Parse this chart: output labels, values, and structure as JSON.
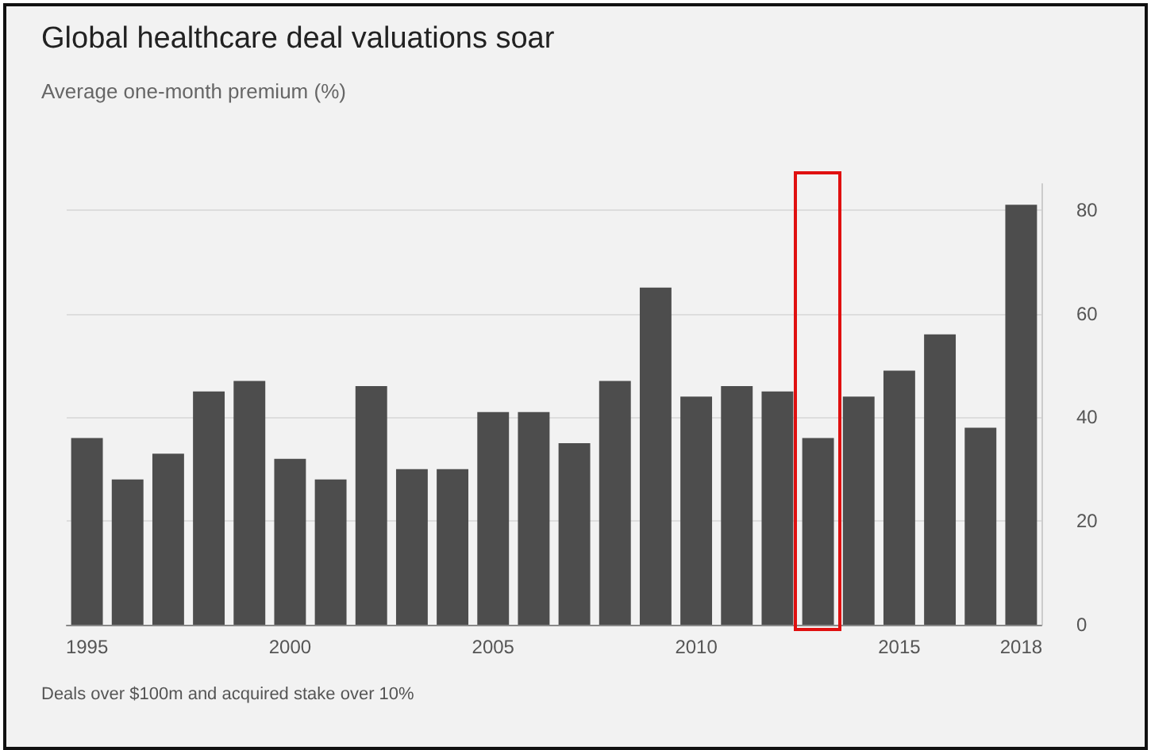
{
  "chart_data": {
    "type": "bar",
    "title": "Global healthcare deal valuations soar",
    "subtitle": "Average one-month premium (%)",
    "categories": [
      "1995",
      null,
      null,
      null,
      null,
      "2000",
      null,
      null,
      null,
      null,
      "2005",
      null,
      null,
      null,
      null,
      "2010",
      null,
      null,
      null,
      null,
      "2015",
      null,
      null,
      "2018"
    ],
    "values": [
      36,
      28,
      33,
      45,
      47,
      32,
      28,
      46,
      30,
      30,
      41,
      41,
      35,
      47,
      65,
      44,
      46,
      45,
      36,
      44,
      49,
      56,
      38,
      81
    ],
    "color": "#4d4d4d",
    "ylim": [
      0,
      85
    ],
    "yticks": [
      0,
      20,
      40,
      60,
      80
    ],
    "grid": "y",
    "annotations": [
      "Deals over $100m and acquired stake over 10%"
    ]
  }
}
